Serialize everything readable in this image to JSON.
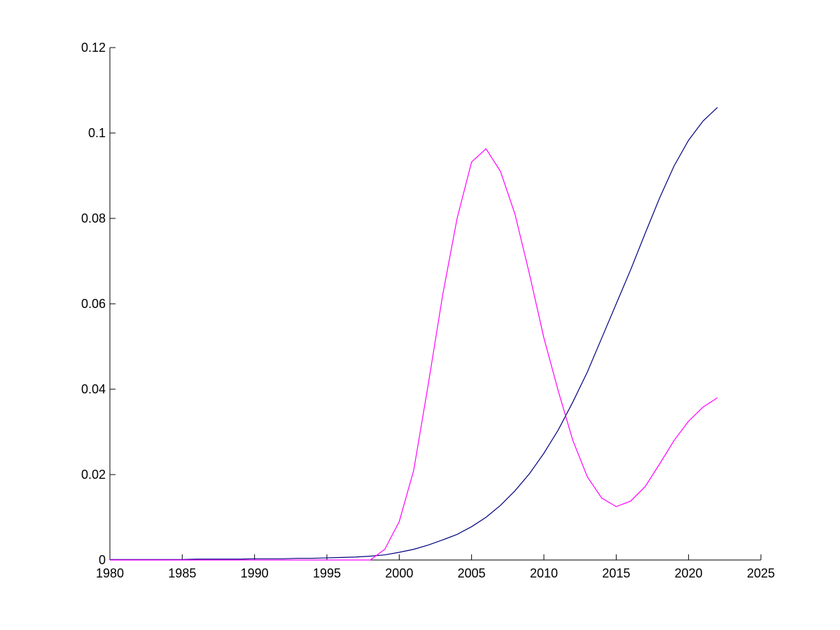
{
  "chart_data": {
    "type": "line",
    "x": [
      1980,
      1981,
      1982,
      1983,
      1984,
      1985,
      1986,
      1987,
      1988,
      1989,
      1990,
      1991,
      1992,
      1993,
      1994,
      1995,
      1996,
      1997,
      1998,
      1999,
      2000,
      2001,
      2002,
      2003,
      2004,
      2005,
      2006,
      2007,
      2008,
      2009,
      2010,
      2011,
      2012,
      2013,
      2014,
      2015,
      2016,
      2017,
      2018,
      2019,
      2020,
      2021,
      2022
    ],
    "series": [
      {
        "color": "#00007f",
        "values": [
          0.0001,
          0.0001,
          0.0001,
          0.0001,
          0.0001,
          0.0001,
          0.0002,
          0.0002,
          0.0002,
          0.0002,
          0.0003,
          0.0003,
          0.0003,
          0.0004,
          0.0004,
          0.0005,
          0.0006,
          0.0007,
          0.0009,
          0.0012,
          0.0018,
          0.0025,
          0.0035,
          0.0047,
          0.006,
          0.0078,
          0.01,
          0.0128,
          0.0162,
          0.0202,
          0.025,
          0.0305,
          0.037,
          0.044,
          0.052,
          0.06,
          0.068,
          0.0765,
          0.0848,
          0.0923,
          0.0983,
          0.1028,
          0.106
        ]
      },
      {
        "color": "#ff00ff",
        "values": [
          0,
          0,
          0,
          0,
          0,
          0,
          0,
          0,
          0,
          0,
          0,
          0,
          0,
          0,
          0,
          0,
          0,
          0,
          0,
          0.0025,
          0.009,
          0.021,
          0.041,
          0.062,
          0.08,
          0.0932,
          0.0963,
          0.091,
          0.081,
          0.067,
          0.052,
          0.0395,
          0.028,
          0.0195,
          0.0145,
          0.0125,
          0.0138,
          0.0172,
          0.0225,
          0.028,
          0.0325,
          0.0358,
          0.038
        ]
      }
    ],
    "xlim": [
      1980,
      2025
    ],
    "xticks": [
      1980,
      1985,
      1990,
      1995,
      2000,
      2005,
      2010,
      2015,
      2020,
      2025
    ],
    "ylim": [
      0,
      0.12
    ],
    "yticks": [
      0,
      0.02,
      0.04,
      0.06,
      0.08,
      0.1,
      0.12
    ]
  }
}
